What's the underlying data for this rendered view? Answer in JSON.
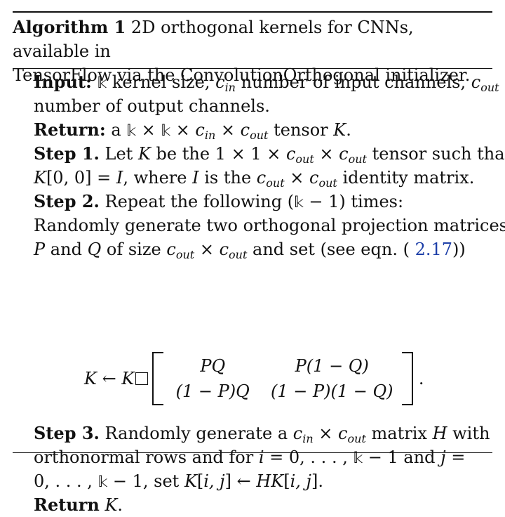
{
  "caption": {
    "label": "Algorithm 1",
    "text1": "2D orthogonal kernels for CNNs, available in",
    "text2": "TensorFlow via the ConvolutionOrthogonal initializer."
  },
  "input": {
    "label": "Input:",
    "text1": "kernel size,",
    "text2": "number of input channels,",
    "text3": "number of output channels."
  },
  "return1": {
    "label": "Return:",
    "text1": "a",
    "text2": "tensor"
  },
  "step1": {
    "label": "Step 1.",
    "text1": "Let",
    "text2": "be the",
    "text3": "tensor such that",
    "text4": ", where",
    "text5": "is the",
    "text6": "identity matrix."
  },
  "step2": {
    "label": "Step 2.",
    "text1": "Repeat the following",
    "text2": "times:",
    "text3": "Randomly generate two orthogonal projection matrices",
    "text4": "and",
    "text5": "of size",
    "text6": "and set (see eqn. (",
    "ref": "2.17",
    "text7": "))"
  },
  "equation": {
    "m11": "PQ",
    "m12": "P(1 − Q)",
    "m21": "(1 − P)Q",
    "m22": "(1 − P)(1 − Q)"
  },
  "step3": {
    "label": "Step 3.",
    "text1": "Randomly generate a",
    "text2": "matrix",
    "text3": "with",
    "text4": "orthonormal rows and for",
    "text5": "and",
    "text6": ", set"
  },
  "return2": {
    "label": "Return"
  },
  "colors": {
    "text": "#111111",
    "reference_link": "#1d3fa8",
    "background": "#ffffff"
  }
}
